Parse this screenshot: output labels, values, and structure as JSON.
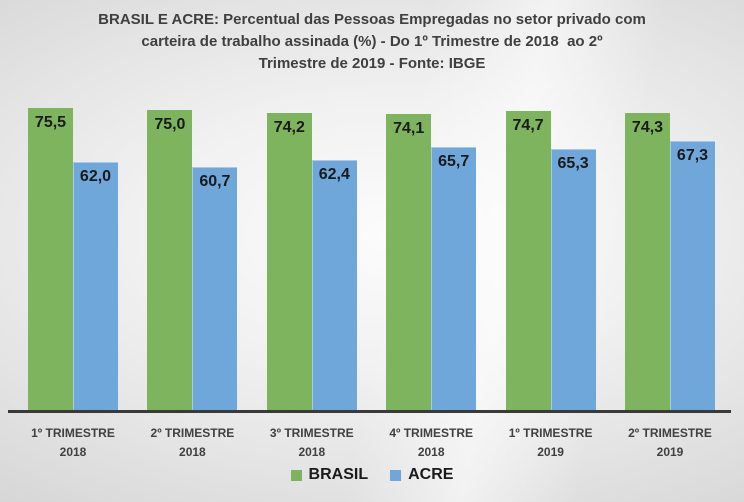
{
  "title": {
    "lines": [
      "BRASIL E ACRE: Percentual das Pessoas Empregadas no setor privado com",
      "carteira de trabalho assinada (%) - Do 1º Trimestre de 2018  ao 2º",
      "Trimestre de 2019 - Fonte: IBGE"
    ]
  },
  "chart_data": {
    "type": "bar",
    "title": "BRASIL E ACRE: Percentual das Pessoas Empregadas no setor privado com carteira de trabalho assinada (%) - Do 1º Trimestre de 2018 ao 2º Trimestre de 2019 - Fonte: IBGE",
    "categories": [
      {
        "quarter": "1º TRIMESTRE",
        "year": "2018"
      },
      {
        "quarter": "2º TRIMESTRE",
        "year": "2018"
      },
      {
        "quarter": "3º TRIMESTRE",
        "year": "2018"
      },
      {
        "quarter": "4º TRIMESTRE",
        "year": "2018"
      },
      {
        "quarter": "1º TRIMESTRE",
        "year": "2019"
      },
      {
        "quarter": "2º TRIMESTRE",
        "year": "2019"
      }
    ],
    "series": [
      {
        "name": "BRASIL",
        "color": "#7eb45e",
        "values": [
          75.5,
          75.0,
          74.2,
          74.1,
          74.7,
          74.3
        ],
        "labels": [
          "75,5",
          "75,0",
          "74,2",
          "74,1",
          "74,7",
          "74,3"
        ]
      },
      {
        "name": "ACRE",
        "color": "#6fa7db",
        "values": [
          62.0,
          60.7,
          62.4,
          65.7,
          65.3,
          67.3
        ],
        "labels": [
          "62,0",
          "60,7",
          "62,4",
          "65,7",
          "65,3",
          "67,3"
        ]
      }
    ],
    "ylim": [
      0,
      80
    ],
    "grid": false,
    "value_label_position": "inside-top",
    "legend_position": "bottom-center",
    "text_color": "#3f3f3f",
    "axis_line_color": "#3a3a3a"
  }
}
